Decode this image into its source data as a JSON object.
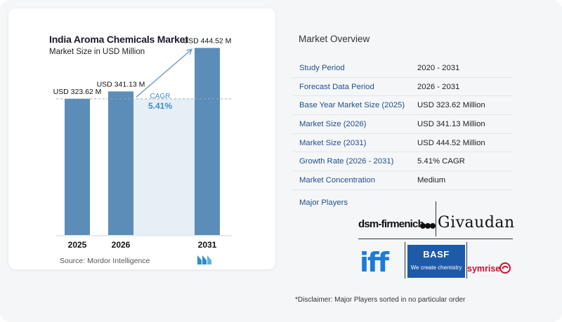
{
  "chart_data": {
    "type": "bar",
    "title": "India Aroma Chemicals Market",
    "subtitle": "Market Size in USD Million",
    "categories": [
      "2025",
      "2026",
      "2031"
    ],
    "values": [
      323.62,
      341.13,
      444.52
    ],
    "value_labels": [
      "USD 323.62 M",
      "USD 341.13 M",
      "USD 444.52 M"
    ],
    "cagr_label": "CAGR",
    "cagr_value": "5.41%",
    "colors": {
      "bar": "#5b8db8",
      "band": "#e6eef6",
      "arrow": "#6fa3d1",
      "cagr_text": "#3f8ad3"
    }
  },
  "source": "Source:  Mordor Intelligence",
  "logo": {
    "name": "mordor-intelligence-logo",
    "color": "#2a8fc7"
  },
  "overview": {
    "title": "Market Overview",
    "rows": [
      {
        "label": "Study Period",
        "value": "2020 - 2031"
      },
      {
        "label": "Forecast Data Period",
        "value": "2026 - 2031"
      },
      {
        "label": "Base Year Market Size (2025)",
        "value": "USD 323.62 Million"
      },
      {
        "label": "Market Size (2026)",
        "value": "USD 341.13 Million"
      },
      {
        "label": "Market Size (2031)",
        "value": "USD 444.52 Million"
      },
      {
        "label": "Growth Rate (2026 - 2031)",
        "value": "5.41% CAGR"
      },
      {
        "label": "Market Concentration",
        "value": "Medium"
      }
    ],
    "players_title": "Major Players"
  },
  "players": {
    "dsm": "dsm-firmenich",
    "givaudan": "Givaudan",
    "iff": "iff",
    "basf": "BASF",
    "basf_tagline": "We create chemistry",
    "symrise": "symrise"
  },
  "disclaimer": "*Disclaimer: Major Players sorted in no particular order"
}
